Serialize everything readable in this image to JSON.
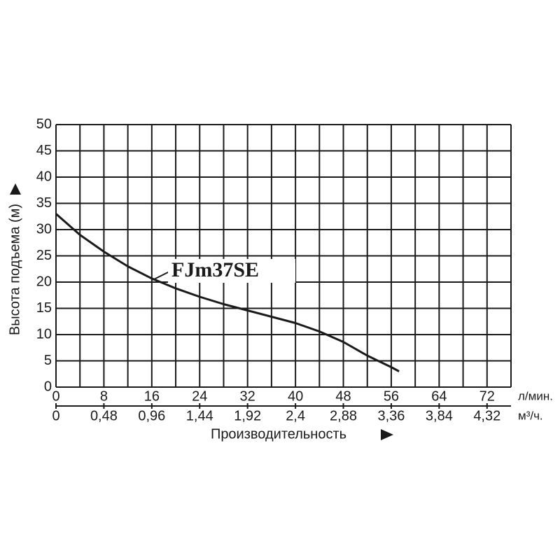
{
  "chart_data": {
    "type": "line",
    "series_label": "FJm37SE",
    "ylabel": "Высота подъема (м)",
    "xlabel": "Производительность",
    "x_unit": "л/мин.",
    "x2_unit": "м³/ч.",
    "x": [
      0,
      4,
      8,
      12,
      16,
      20,
      24,
      28,
      32,
      36,
      40,
      44,
      48,
      52,
      56,
      57.3
    ],
    "values": [
      33,
      29,
      25.8,
      23,
      20.7,
      18.8,
      17.2,
      15.8,
      14.6,
      13.4,
      12.2,
      10.6,
      8.6,
      6,
      3.8,
      3
    ],
    "color": "#1a1a1a",
    "xlim": [
      0,
      76
    ],
    "xticks": [
      0,
      8,
      16,
      24,
      32,
      40,
      48,
      56,
      64,
      72
    ],
    "xgrid": [
      0,
      4,
      8,
      12,
      16,
      20,
      24,
      28,
      32,
      36,
      40,
      44,
      48,
      52,
      56,
      60,
      64,
      68,
      72,
      76
    ],
    "x2lim": [
      0,
      4.56
    ],
    "x2ticks": [
      0,
      {
        "value": 0.48,
        "label": "0,48"
      },
      {
        "value": 0.96,
        "label": "0,96"
      },
      {
        "value": 1.44,
        "label": "1,44"
      },
      {
        "value": 1.92,
        "label": "1,92"
      },
      {
        "value": 2.4,
        "label": "2,4"
      },
      {
        "value": 2.88,
        "label": "2,88"
      },
      {
        "value": 3.36,
        "label": "3,36"
      },
      {
        "value": 3.84,
        "label": "3,84"
      },
      {
        "value": 4.32,
        "label": "4,32"
      }
    ],
    "ylim": [
      0,
      50
    ],
    "yticks": [
      0,
      5,
      10,
      15,
      20,
      25,
      30,
      35,
      40,
      45,
      50
    ],
    "grid": true
  }
}
